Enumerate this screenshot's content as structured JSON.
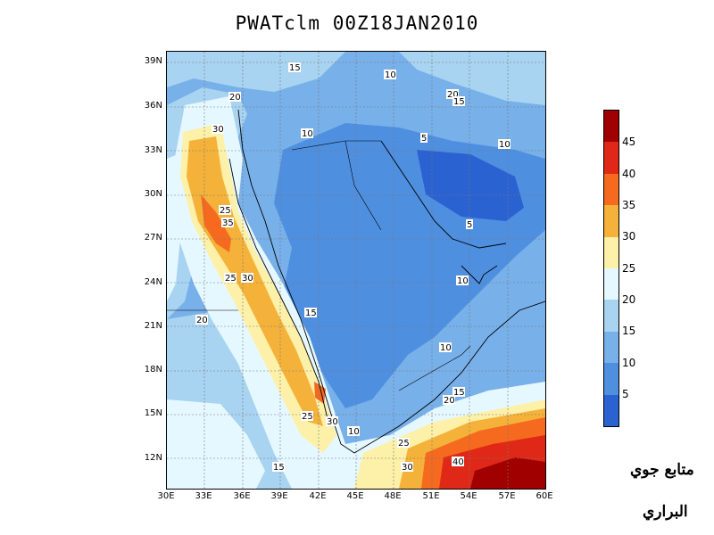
{
  "title": "PWATclm  00Z18JAN2010",
  "lat_ticks": [
    "39N",
    "36N",
    "33N",
    "30N",
    "27N",
    "24N",
    "21N",
    "18N",
    "15N",
    "12N"
  ],
  "lon_ticks": [
    "30E",
    "33E",
    "36E",
    "39E",
    "42E",
    "45E",
    "48E",
    "51E",
    "54E",
    "57E",
    "60E"
  ],
  "colorbar": {
    "ticks": [
      "45",
      "40",
      "35",
      "30",
      "25",
      "20",
      "15",
      "10",
      "5"
    ],
    "colors": [
      "#a00000",
      "#e02818",
      "#f56a1e",
      "#f5b23a",
      "#fdf0a8",
      "#e6f8ff",
      "#a8d4f2",
      "#78b0ea",
      "#4f8fe0",
      "#2a62d2"
    ]
  },
  "contour_labels": [
    "15",
    "10",
    "20",
    "20",
    "15",
    "30",
    "10",
    "5",
    "10",
    "25",
    "35",
    "5",
    "10",
    "25",
    "30",
    "15",
    "20",
    "10",
    "15",
    "20",
    "25",
    "30",
    "10",
    "25",
    "30",
    "40",
    "15"
  ],
  "watermark": {
    "line1": "متابع جوي",
    "line2": "البراري"
  }
}
